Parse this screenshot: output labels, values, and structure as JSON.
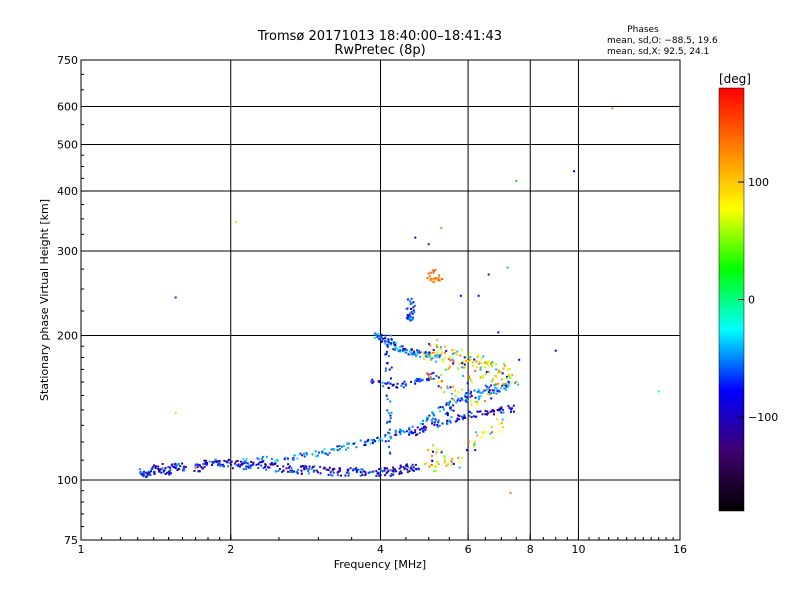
{
  "chart_data": {
    "type": "scatter",
    "title": "Tromsø 20171013 18:40:00–18:41:43",
    "subtitle": "RwPretec (8p)",
    "xlabel": "Frequency [MHz]",
    "ylabel": "Stationary phase Virtual Height [km]",
    "x_scale": "log",
    "y_scale": "log",
    "xlim": [
      1,
      16
    ],
    "ylim": [
      75,
      750
    ],
    "x_ticks": [
      1,
      2,
      4,
      6,
      8,
      10,
      16
    ],
    "x_tick_labels": [
      "1",
      "2",
      "4",
      "6",
      "8",
      "10",
      "16"
    ],
    "x_grid": [
      2,
      4,
      6,
      8,
      10
    ],
    "y_ticks": [
      75,
      100,
      200,
      300,
      400,
      500,
      600,
      750
    ],
    "y_tick_labels": [
      "75",
      "100",
      "200",
      "300",
      "400",
      "500",
      "600",
      "750"
    ],
    "y_grid": [
      100,
      200,
      300,
      400,
      500,
      600
    ],
    "grid": true,
    "phase_box": {
      "title": "Phases",
      "line_o": "mean, sd,O: −88.5, 19.6",
      "line_x": "mean, sd,X:  92.5, 24.1"
    },
    "colorbar": {
      "label": "[deg]",
      "range": [
        -180,
        180
      ],
      "ticks": [
        100,
        0,
        -100
      ],
      "tick_labels": [
        "100",
        "0",
        "−100"
      ],
      "colors": [
        "#ff0000",
        "#ff8000",
        "#ffff00",
        "#00ff00",
        "#00ffff",
        "#0000ff",
        "#400070",
        "#000000"
      ]
    },
    "o_trace": [
      [
        1.3,
        104
      ],
      [
        1.35,
        103
      ],
      [
        1.4,
        105
      ],
      [
        1.45,
        106
      ],
      [
        1.5,
        104
      ],
      [
        1.55,
        107
      ],
      [
        1.6,
        106
      ],
      [
        1.75,
        106
      ],
      [
        1.8,
        109
      ],
      [
        1.9,
        108
      ],
      [
        2.0,
        108
      ],
      [
        2.1,
        107
      ],
      [
        2.2,
        108
      ],
      [
        2.35,
        107
      ],
      [
        2.5,
        106
      ],
      [
        2.65,
        106
      ],
      [
        2.8,
        105
      ],
      [
        3.0,
        105
      ],
      [
        3.2,
        104
      ],
      [
        3.4,
        104
      ],
      [
        3.6,
        104
      ],
      [
        3.8,
        104
      ],
      [
        4.0,
        104
      ],
      [
        4.2,
        104
      ],
      [
        4.4,
        105
      ],
      [
        4.6,
        106
      ],
      [
        4.8,
        107
      ]
    ],
    "o_trace_upper": [
      [
        2.1,
        109
      ],
      [
        2.3,
        110
      ],
      [
        2.5,
        111
      ],
      [
        2.7,
        112
      ],
      [
        2.9,
        113
      ],
      [
        3.1,
        114
      ],
      [
        3.3,
        116
      ],
      [
        3.5,
        118
      ],
      [
        3.7,
        120
      ],
      [
        3.9,
        121
      ],
      [
        4.1,
        123
      ],
      [
        4.3,
        125
      ],
      [
        4.5,
        126
      ],
      [
        4.7,
        128
      ]
    ],
    "o_layer2": [
      [
        3.9,
        200
      ],
      [
        4.0,
        199
      ],
      [
        4.1,
        196
      ],
      [
        4.2,
        192
      ],
      [
        4.3,
        190
      ],
      [
        4.4,
        187
      ],
      [
        4.55,
        186
      ],
      [
        4.7,
        184
      ],
      [
        4.85,
        183
      ],
      [
        5.0,
        182
      ],
      [
        5.2,
        181
      ]
    ],
    "o_layer3": [
      [
        3.8,
        161
      ],
      [
        4.0,
        158
      ],
      [
        4.2,
        157
      ],
      [
        4.4,
        158
      ],
      [
        4.6,
        160
      ],
      [
        4.8,
        162
      ],
      [
        5.0,
        164
      ],
      [
        5.2,
        166
      ]
    ],
    "o_rise": [
      [
        4.8,
        130
      ],
      [
        5.0,
        134
      ],
      [
        5.2,
        137
      ],
      [
        5.4,
        140
      ],
      [
        5.6,
        143
      ],
      [
        5.8,
        146
      ],
      [
        6.0,
        149
      ],
      [
        6.2,
        151
      ],
      [
        6.4,
        153
      ],
      [
        6.6,
        154
      ],
      [
        6.8,
        155
      ],
      [
        7.0,
        156
      ],
      [
        7.2,
        157
      ],
      [
        7.4,
        158
      ]
    ],
    "o_rise_lower": [
      [
        4.6,
        124
      ],
      [
        4.8,
        127
      ],
      [
        5.0,
        129
      ],
      [
        5.3,
        132
      ],
      [
        5.6,
        134
      ],
      [
        5.9,
        136
      ],
      [
        6.2,
        137
      ],
      [
        6.5,
        138
      ],
      [
        6.8,
        139
      ],
      [
        7.1,
        140
      ],
      [
        7.4,
        141
      ]
    ],
    "x_trace": [
      [
        4.9,
        186
      ],
      [
        5.0,
        185
      ],
      [
        5.2,
        184
      ],
      [
        5.4,
        183
      ],
      [
        5.6,
        181
      ],
      [
        5.8,
        180
      ],
      [
        6.0,
        178
      ],
      [
        6.2,
        176
      ],
      [
        6.4,
        174
      ],
      [
        6.6,
        172
      ],
      [
        6.8,
        170
      ],
      [
        7.0,
        167
      ],
      [
        7.2,
        163
      ],
      [
        7.4,
        160
      ]
    ],
    "x_scatter": [
      [
        5.0,
        165
      ],
      [
        5.2,
        160
      ],
      [
        5.4,
        170
      ],
      [
        5.5,
        155
      ],
      [
        5.7,
        150
      ],
      [
        5.8,
        175
      ],
      [
        6.0,
        160
      ],
      [
        6.2,
        145
      ],
      [
        6.4,
        165
      ],
      [
        6.6,
        150
      ],
      [
        6.8,
        160
      ],
      [
        5.1,
        115
      ],
      [
        5.3,
        112
      ],
      [
        5.5,
        110
      ],
      [
        5.7,
        108
      ],
      [
        5.0,
        107
      ],
      [
        5.2,
        106
      ],
      [
        6.1,
        118
      ],
      [
        6.3,
        122
      ],
      [
        6.6,
        126
      ],
      [
        6.9,
        130
      ]
    ],
    "x_upper": [
      [
        5.0,
        265
      ],
      [
        5.1,
        262
      ],
      [
        5.2,
        260
      ],
      [
        5.3,
        264
      ],
      [
        5.0,
        270
      ],
      [
        5.2,
        275
      ]
    ],
    "sparse_points": [
      {
        "x": 1.55,
        "y": 240,
        "c": "#1030e0"
      },
      {
        "x": 1.55,
        "y": 138,
        "c": "#ffd000"
      },
      {
        "x": 1.7,
        "y": 106,
        "c": "#ff6000"
      },
      {
        "x": 2.05,
        "y": 345,
        "c": "#ffd000"
      },
      {
        "x": 4.7,
        "y": 320,
        "c": "#0000ff"
      },
      {
        "x": 5.0,
        "y": 310,
        "c": "#202080"
      },
      {
        "x": 5.3,
        "y": 335,
        "c": "#ff8000"
      },
      {
        "x": 5.8,
        "y": 242,
        "c": "#0000ff"
      },
      {
        "x": 6.3,
        "y": 242,
        "c": "#0000ff"
      },
      {
        "x": 6.6,
        "y": 268,
        "c": "#4000a0"
      },
      {
        "x": 7.2,
        "y": 277,
        "c": "#00b0ff"
      },
      {
        "x": 7.5,
        "y": 420,
        "c": "#20d020"
      },
      {
        "x": 9.0,
        "y": 186,
        "c": "#0000ff"
      },
      {
        "x": 9.8,
        "y": 440,
        "c": "#0000ff"
      },
      {
        "x": 11.7,
        "y": 595,
        "c": "#ff8000"
      },
      {
        "x": 14.5,
        "y": 153,
        "c": "#00ffff"
      },
      {
        "x": 7.3,
        "y": 94,
        "c": "#ff8000"
      },
      {
        "x": 5.2,
        "y": 196,
        "c": "#ffa000"
      },
      {
        "x": 6.9,
        "y": 203,
        "c": "#0000ff"
      },
      {
        "x": 7.6,
        "y": 178,
        "c": "#0000ff"
      }
    ]
  }
}
